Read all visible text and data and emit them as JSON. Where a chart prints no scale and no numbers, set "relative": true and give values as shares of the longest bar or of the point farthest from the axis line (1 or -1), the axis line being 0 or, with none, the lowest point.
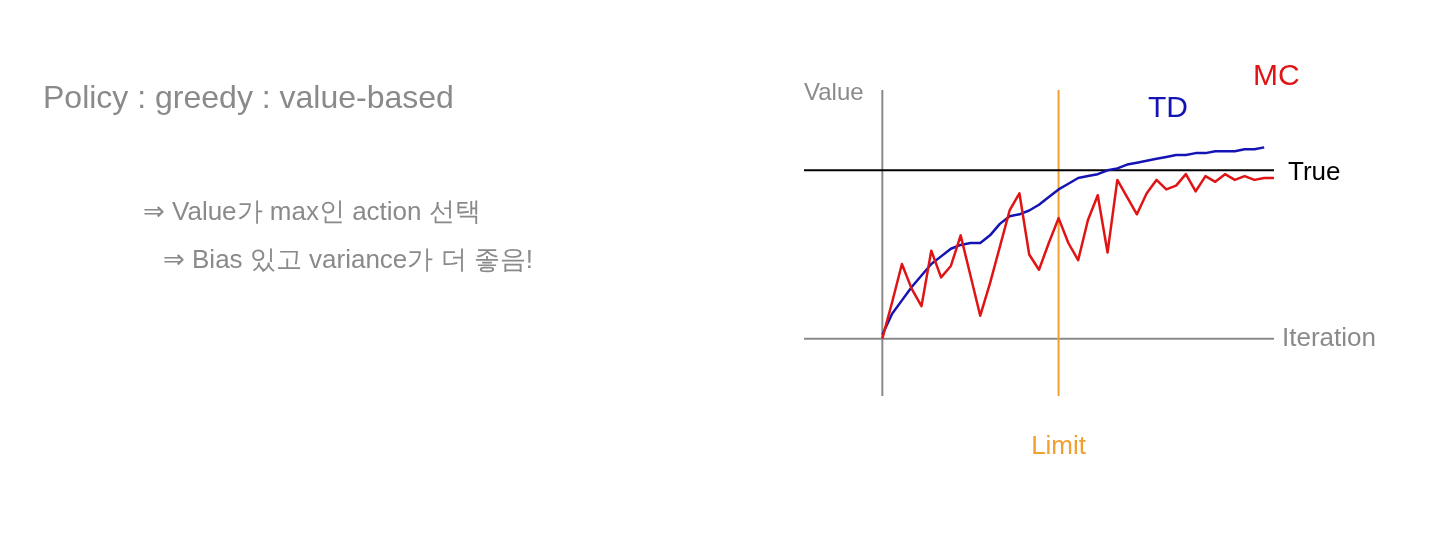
{
  "chart_data": {
    "type": "line",
    "relative": true,
    "xlabel": "Iteration",
    "ylabel": "Value",
    "categories": [
      null,
      null,
      null,
      null,
      null,
      null,
      null,
      null,
      null,
      null,
      null,
      null,
      null,
      null,
      null,
      null,
      null,
      null,
      null,
      null,
      null,
      null,
      null,
      null,
      null,
      null,
      null,
      null,
      null,
      null,
      null,
      null,
      null,
      null,
      null,
      null,
      null,
      null,
      null,
      null,
      null
    ],
    "series": [
      {
        "name": "TD",
        "color": "#1414b4",
        "values": [
          0.02,
          0.13,
          0.2,
          0.27,
          0.33,
          0.39,
          0.43,
          0.47,
          0.49,
          0.5,
          0.5,
          0.54,
          0.6,
          0.64,
          0.65,
          0.67,
          0.7,
          0.74,
          0.78,
          0.81,
          0.84,
          0.85,
          0.86,
          0.88,
          0.89,
          0.91,
          0.92,
          0.93,
          0.94,
          0.95,
          0.96,
          0.96,
          0.97,
          0.97,
          0.98,
          0.98,
          0.98,
          0.99,
          0.99,
          1,
          null
        ]
      },
      {
        "name": "MC",
        "color": "#e01414",
        "values": [
          0,
          0.19,
          0.39,
          0.26,
          0.17,
          0.46,
          0.32,
          0.38,
          0.54,
          0.33,
          0.12,
          0.29,
          0.48,
          0.67,
          0.76,
          0.44,
          0.36,
          0.5,
          0.63,
          0.5,
          0.41,
          0.62,
          0.75,
          0.45,
          0.83,
          0.74,
          0.65,
          0.76,
          0.83,
          0.78,
          0.8,
          0.86,
          0.77,
          0.85,
          0.82,
          0.86,
          0.83,
          0.85,
          0.83,
          0.84,
          0.84
        ]
      }
    ],
    "ref_lines": [
      {
        "axis": "y",
        "value": 0.88,
        "label": "True",
        "color": "#000000"
      }
    ],
    "annotations": [
      "Policy : greedy : value-based",
      "⇒ Value가 max인 action 선택",
      "⇒ Bias 있고 variance가 더 좋음!",
      "Limit"
    ],
    "marker": "none",
    "line_style": "solid"
  }
}
